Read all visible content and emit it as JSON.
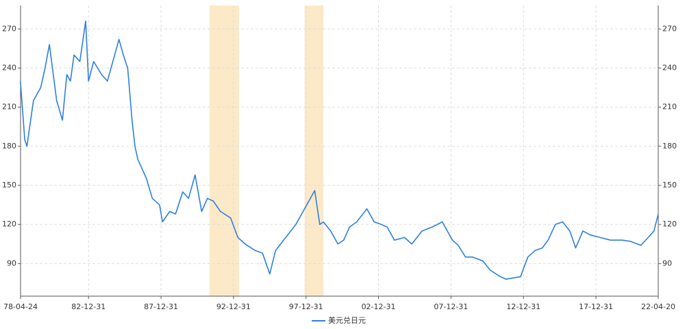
{
  "chart_data": {
    "type": "line",
    "x": [
      1978.3,
      1978.6,
      1978.75,
      1979.2,
      1979.7,
      1980.0,
      1980.3,
      1980.8,
      1981.2,
      1981.5,
      1981.75,
      1982.0,
      1982.4,
      1982.8,
      1983.0,
      1983.35,
      1983.9,
      1984.3,
      1984.8,
      1985.1,
      1985.4,
      1985.7,
      1986.0,
      1986.2,
      1986.4,
      1986.8,
      1987.0,
      1987.4,
      1987.9,
      1988.1,
      1988.6,
      1989.0,
      1989.5,
      1989.9,
      1990.35,
      1990.8,
      1991.2,
      1991.6,
      1992.1,
      1992.8,
      1993.3,
      1993.8,
      1994.5,
      1995.0,
      1995.5,
      1995.9,
      1996.6,
      1997.3,
      1997.8,
      1998.3,
      1998.6,
      1998.95,
      1999.2,
      1999.7,
      2000.2,
      2000.6,
      2001.0,
      2001.5,
      2002.2,
      2002.7,
      2003.2,
      2003.6,
      2004.1,
      2004.8,
      2005.3,
      2006.0,
      2006.7,
      2007.4,
      2008.1,
      2008.5,
      2009.0,
      2009.5,
      2010.2,
      2010.7,
      2011.4,
      2011.8,
      2012.8,
      2013.3,
      2013.8,
      2014.3,
      2014.7,
      2015.2,
      2015.7,
      2016.2,
      2016.6,
      2017.1,
      2017.6,
      2018.3,
      2019.0,
      2019.8,
      2020.4,
      2021.1,
      2021.6,
      2022.0,
      2022.3
    ],
    "series": [
      {
        "name": "美元兑日元",
        "color": "#2b7fe0",
        "values": [
          230,
          185,
          180,
          215,
          225,
          240,
          258,
          215,
          200,
          235,
          230,
          250,
          245,
          276,
          230,
          245,
          235,
          230,
          250,
          262,
          250,
          240,
          200,
          180,
          170,
          160,
          155,
          140,
          135,
          122,
          130,
          128,
          145,
          140,
          158,
          130,
          140,
          138,
          130,
          125,
          110,
          105,
          100,
          98,
          82,
          100,
          110,
          120,
          130,
          140,
          146,
          120,
          122,
          115,
          105,
          108,
          118,
          122,
          132,
          122,
          120,
          118,
          108,
          110,
          105,
          115,
          118,
          122,
          108,
          104,
          95,
          95,
          92,
          85,
          80,
          78,
          80,
          95,
          100,
          102,
          108,
          120,
          122,
          115,
          102,
          115,
          112,
          110,
          108,
          108,
          107,
          104,
          110,
          115,
          128
        ]
      }
    ],
    "xlim": [
      1978.31,
      2022.3
    ],
    "xticks": [
      {
        "value": 1978.31,
        "label": "78-04-24"
      },
      {
        "value": 1983.0,
        "label": "82-12-31"
      },
      {
        "value": 1988.0,
        "label": "87-12-31"
      },
      {
        "value": 1993.0,
        "label": "92-12-31"
      },
      {
        "value": 1998.0,
        "label": "97-12-31"
      },
      {
        "value": 2003.0,
        "label": "02-12-31"
      },
      {
        "value": 2008.0,
        "label": "07-12-31"
      },
      {
        "value": 2013.0,
        "label": "12-12-31"
      },
      {
        "value": 2018.0,
        "label": "17-12-31"
      },
      {
        "value": 2022.3,
        "label": "22-04-20"
      }
    ],
    "ylim": [
      65,
      288
    ],
    "yticks": [
      90,
      120,
      150,
      180,
      210,
      240,
      270
    ],
    "y2lim": [
      65,
      288
    ],
    "y2ticks": [
      90,
      120,
      150,
      180,
      210,
      240,
      270
    ],
    "highlight_ranges": [
      [
        1991.35,
        1993.38
      ],
      [
        1997.9,
        1999.2
      ]
    ],
    "highlight_color": "#fce9c8",
    "grid": true,
    "legend": "bottom"
  }
}
